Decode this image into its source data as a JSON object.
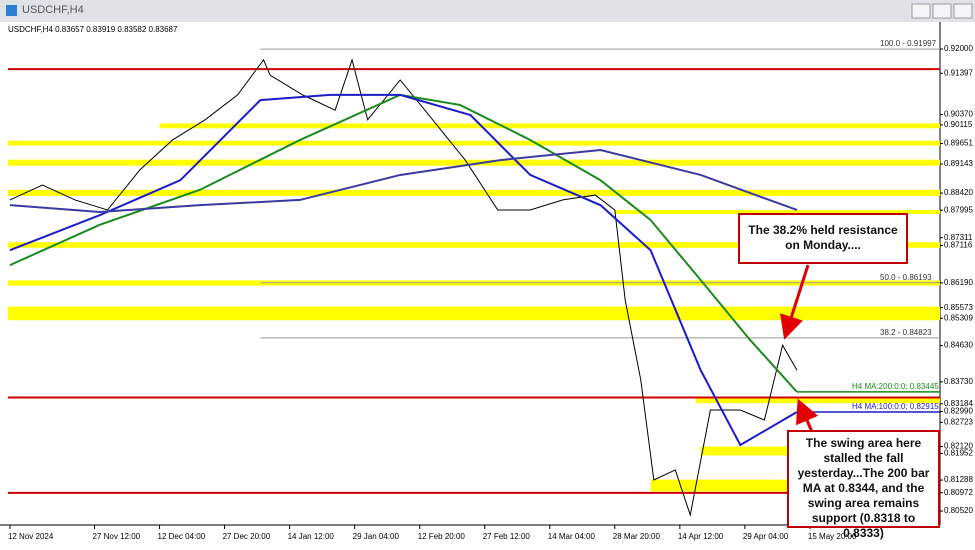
{
  "window": {
    "title": "USDCHF,H4"
  },
  "chart_data": {
    "type": "line",
    "title": "USDCHF,H4  0.83657 0.83919 0.83582 0.83687",
    "xlim": [
      -0.03,
      14.3
    ],
    "ylim": [
      0.80172,
      0.92348
    ],
    "xticks": [
      {
        "value": 0,
        "label": "12 Nov 2024"
      },
      {
        "value": 1.3,
        "label": "27 Nov 12:00"
      },
      {
        "value": 2.3,
        "label": "12 Dec 04:00"
      },
      {
        "value": 3.3,
        "label": "27 Dec 20:00"
      },
      {
        "value": 4.3,
        "label": "14 Jan 12:00"
      },
      {
        "value": 5.3,
        "label": "29 Jan 04:00"
      },
      {
        "value": 6.3,
        "label": "12 Feb 20:00"
      },
      {
        "value": 7.3,
        "label": "27 Feb 12:00"
      },
      {
        "value": 8.3,
        "label": "14 Mar 04:00"
      },
      {
        "value": 9.3,
        "label": "28 Mar 20:00"
      },
      {
        "value": 10.3,
        "label": "14 Apr 12:00"
      },
      {
        "value": 11.3,
        "label": "29 Apr 04:00"
      },
      {
        "value": 12.3,
        "label": "15 May 20:00"
      }
    ],
    "yticks": [
      {
        "value": 0.92,
        "label": "0.92000"
      },
      0.91397,
      {
        "value": 0.9037,
        "label": "0.90370"
      },
      0.90115,
      0.89651,
      0.89143,
      {
        "value": 0.8842,
        "label": "0.88420"
      },
      0.87995,
      0.87311,
      0.87116,
      {
        "value": 0.8619,
        "label": "0.86190"
      },
      0.85573,
      0.85309,
      {
        "value": 0.8463,
        "label": "0.84630"
      },
      {
        "value": 0.8373,
        "label": "0.83730"
      },
      0.83184,
      {
        "value": 0.8299,
        "label": "0.82990"
      },
      0.82723,
      {
        "value": 0.8212,
        "label": "0.82120"
      },
      0.81952,
      0.81288,
      0.80972,
      {
        "value": 0.8052,
        "label": "0.80520"
      }
    ],
    "series": [
      {
        "color": "#000000",
        "x": [
          0,
          0.5,
          1,
          1.5,
          2,
          2.5,
          3,
          3.5,
          3.9,
          4,
          4.5,
          5,
          5.26,
          5.5,
          6,
          6.5,
          7,
          7.5,
          8,
          8.5,
          9,
          9.3,
          9.46,
          9.7,
          9.9,
          10.23,
          10.46,
          10.77,
          11.23,
          11.6,
          11.88,
          12.1
        ],
        "values": [
          0.8825,
          0.8862,
          0.8825,
          0.88,
          0.89,
          0.8974,
          0.9024,
          0.9086,
          0.9173,
          0.9135,
          0.9086,
          0.9048,
          0.9173,
          0.9024,
          0.9123,
          0.9024,
          0.8924,
          0.88,
          0.88,
          0.8825,
          0.8837,
          0.88,
          0.8576,
          0.8377,
          0.8129,
          0.8154,
          0.8042,
          0.8303,
          0.8303,
          0.8278,
          0.8464,
          0.8402
        ]
      },
      {
        "color": "#1a8a1a",
        "label": "H4 MA:200:0:0; 0.83445",
        "x": [
          0,
          1.38,
          2.92,
          4.46,
          6,
          6.92,
          8,
          9.08,
          9.85,
          10.62,
          11.38,
          12.1
        ],
        "values": [
          0.8663,
          0.8763,
          0.885,
          0.8974,
          0.9086,
          0.9061,
          0.8974,
          0.8874,
          0.8775,
          0.8626,
          0.8477,
          0.8348
        ]
      },
      {
        "color": "#1c1cc8",
        "label": "H4 MA:100:0:0; 0.82915",
        "x": [
          0,
          1.38,
          2.62,
          3.85,
          4.92,
          6,
          7.08,
          8,
          9.08,
          9.85,
          10.62,
          11.23,
          12.1
        ],
        "values": [
          0.87,
          0.8787,
          0.8874,
          0.9073,
          0.9086,
          0.9086,
          0.9036,
          0.8887,
          0.8812,
          0.87,
          0.8402,
          0.8216,
          0.8298
        ]
      },
      {
        "color": "#3a3aa0",
        "x": [
          0,
          1.38,
          2.92,
          4.46,
          6,
          7.54,
          9.08,
          10.62,
          12.1
        ],
        "values": [
          0.8812,
          0.8795,
          0.8812,
          0.8825,
          0.8887,
          0.8924,
          0.8949,
          0.8887,
          0.88
        ]
      }
    ],
    "zones": [
      {
        "range": [
          0.9003,
          0.9015
        ],
        "from": 2.3
      },
      {
        "range": [
          0.896,
          0.8972
        ],
        "from": -0.03
      },
      {
        "range": [
          0.891,
          0.8925
        ],
        "from": -0.03
      },
      {
        "range": [
          0.8835,
          0.885
        ],
        "from": -0.03
      },
      {
        "range": [
          0.879,
          0.88
        ],
        "from": 9.3
      },
      {
        "range": [
          0.8706,
          0.872
        ],
        "from": -0.03
      },
      {
        "range": [
          0.8612,
          0.8625
        ],
        "from": -0.03
      },
      {
        "range": [
          0.8526,
          0.856
        ],
        "from": -0.03
      },
      {
        "range": [
          0.832,
          0.8333
        ],
        "from": 10.55
      },
      {
        "range": [
          0.819,
          0.8212
        ],
        "from": 10.62
      },
      {
        "range": [
          0.81,
          0.813
        ],
        "from": 9.85
      }
    ],
    "red_lines": [
      0.915,
      0.8334,
      0.8097
    ],
    "fib_levels": [
      {
        "label": "100.0 - 0.91997",
        "value": 0.91997,
        "from": 3.85
      },
      {
        "label": "50.0 - 0.86193",
        "value": 0.86193,
        "from": 3.85
      },
      {
        "label": "38.2 - 0.84823",
        "value": 0.84823,
        "from": 3.85
      }
    ],
    "annotations": [
      "The 38.2% held resistance on Monday....",
      "The swing area here stalled the fall yesterday...The 200 bar MA at 0.8344,  and the swing area remains support (0.8318 to 0.8333)"
    ]
  }
}
